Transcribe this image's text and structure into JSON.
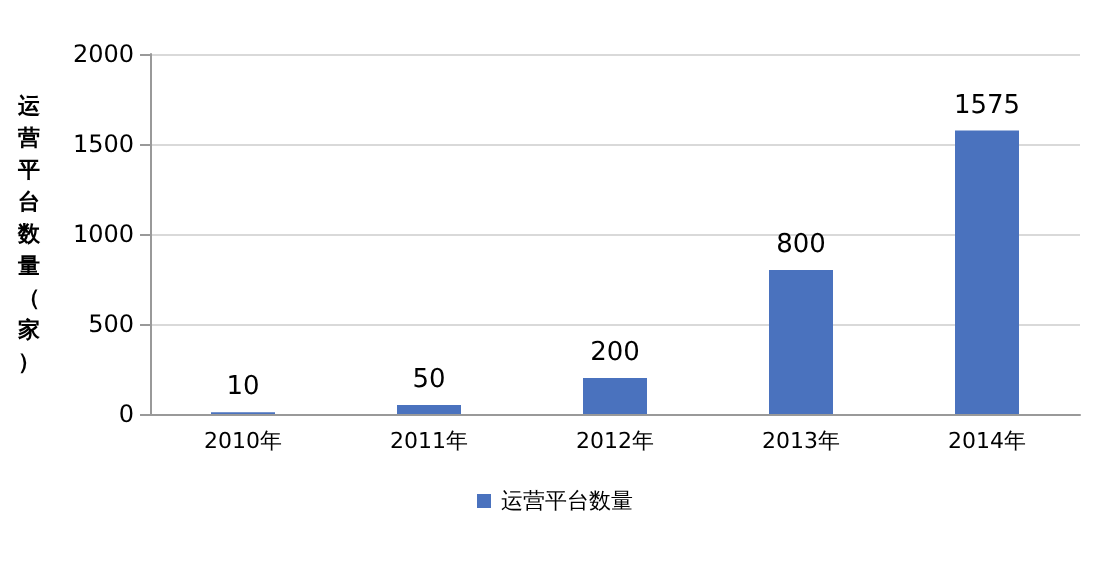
{
  "chart_data": {
    "type": "bar",
    "ylabel": "运营平台数量（家）",
    "categories": [
      "2010年",
      "2011年",
      "2012年",
      "2013年",
      "2014年"
    ],
    "series": [
      {
        "name": "运营平台数量",
        "color": "#4a72be",
        "values": [
          10,
          50,
          200,
          800,
          1575
        ]
      }
    ],
    "ylim": [
      0,
      2000
    ],
    "yticks": [
      0,
      500,
      1000,
      1500,
      2000
    ],
    "grid": "y",
    "legend": "bottom",
    "data_labels": true
  }
}
